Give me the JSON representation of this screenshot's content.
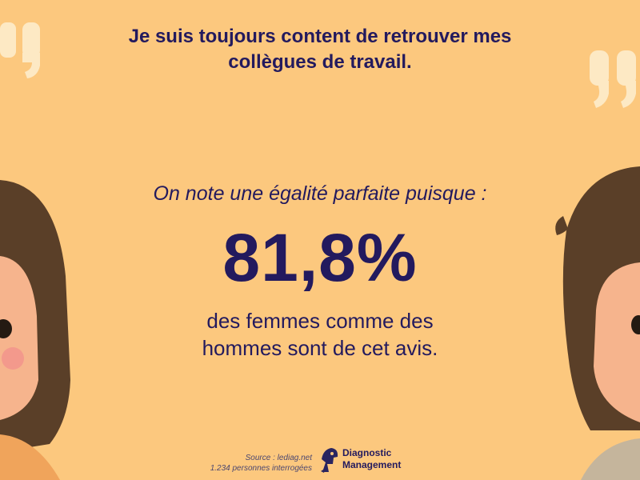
{
  "headline": {
    "line1": "Je suis toujours content de retrouver mes",
    "line2": "collègues de travail."
  },
  "intro": "On note une égalité parfaite puisque :",
  "stat_value": "81,8%",
  "description": {
    "line1": "des femmes comme des",
    "line2": "hommes sont de cet avis."
  },
  "source": {
    "line1": "Source : lediag.net",
    "line2": "1.234 personnes interrogées"
  },
  "brand": {
    "line1": "Diagnostic",
    "line2": "Management"
  },
  "colors": {
    "background": "#fcc87e",
    "text": "#231a5e",
    "quote_mark": "#fde9c4",
    "hair": "#5a3f28",
    "skin": "#f6b48d",
    "cheek": "#f3998c",
    "shirt_left": "#f0a45b",
    "shirt_right": "#c5b59c"
  },
  "icons": [
    "quote-mark-icon",
    "person-illustration",
    "brand-logo-icon"
  ]
}
